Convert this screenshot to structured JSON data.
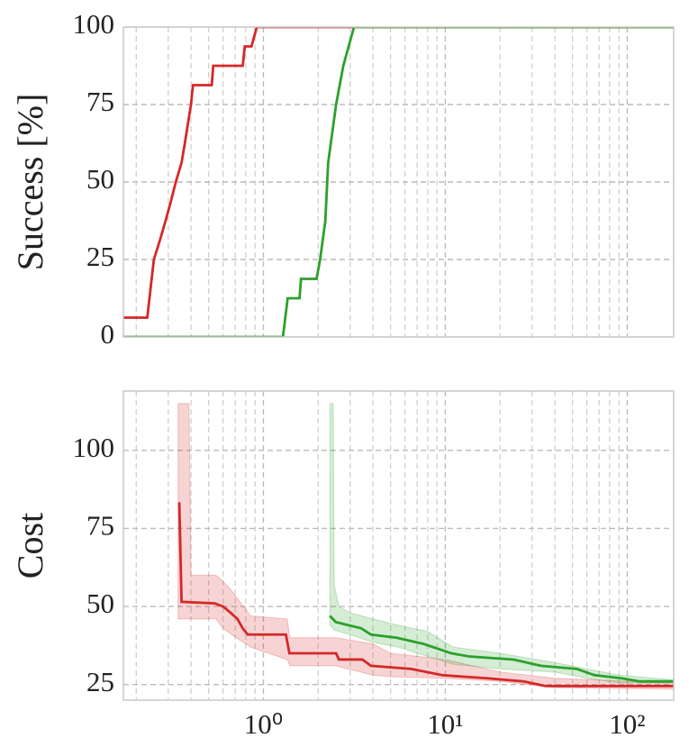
{
  "chart_data": [
    {
      "type": "line",
      "ylabel": "Success [%]",
      "xscale": "log",
      "grid": true,
      "minor_grid": true,
      "xtick_labels": false,
      "xlim": [
        0.17,
        180
      ],
      "ylim": [
        0,
        100
      ],
      "yticks": [
        0,
        25,
        50,
        75,
        100
      ],
      "xticks": [
        1,
        10,
        100
      ],
      "xminorticks": [
        0.2,
        0.3,
        0.4,
        0.5,
        0.6,
        0.7,
        0.8,
        0.9,
        2,
        3,
        4,
        5,
        6,
        7,
        8,
        9,
        20,
        30,
        40,
        50,
        60,
        70,
        80,
        90
      ],
      "series": [
        {
          "color": "#d62728",
          "x": [
            0.17,
            0.23,
            0.25,
            0.27,
            0.29,
            0.31,
            0.33,
            0.355,
            0.37,
            0.4,
            0.41,
            0.52,
            0.53,
            0.77,
            0.79,
            0.86,
            0.92,
            180
          ],
          "values": [
            6.25,
            6.25,
            25,
            31.25,
            37.5,
            43.75,
            50,
            56.25,
            62.5,
            75,
            81.25,
            81.25,
            87.5,
            87.5,
            93.75,
            93.75,
            100,
            100
          ]
        },
        {
          "color": "#2ca02c",
          "x": [
            0.17,
            1.28,
            1.36,
            1.58,
            1.61,
            1.96,
            2.05,
            2.19,
            2.27,
            2.51,
            2.75,
            2.94,
            3.15,
            180
          ],
          "values": [
            0,
            0,
            12.5,
            12.5,
            18.75,
            18.75,
            25,
            37.5,
            56.25,
            75,
            87.5,
            93.75,
            100,
            100
          ]
        }
      ]
    },
    {
      "type": "line",
      "ylabel": "Cost",
      "xscale": "log",
      "grid": true,
      "minor_grid": true,
      "xtick_labels": true,
      "xlim": [
        0.17,
        180
      ],
      "ylim": [
        20,
        119
      ],
      "yticks": [
        25,
        50,
        75,
        100
      ],
      "xticks": [
        {
          "value": 1,
          "label": "10⁰"
        },
        {
          "value": 10,
          "label": "10¹"
        },
        {
          "value": 100,
          "label": "10²"
        }
      ],
      "xminorticks": [
        0.2,
        0.3,
        0.4,
        0.5,
        0.6,
        0.7,
        0.8,
        0.9,
        2,
        3,
        4,
        5,
        6,
        7,
        8,
        9,
        20,
        30,
        40,
        50,
        60,
        70,
        80,
        90
      ],
      "series": [
        {
          "color": "#d62728",
          "x": [
            0.34,
            0.345,
            0.355,
            0.54,
            0.6,
            0.66,
            0.72,
            0.77,
            0.82,
            1.33,
            1.39,
            2.51,
            2.6,
            3.5,
            3.9,
            6.5,
            9.6,
            17,
            27,
            35.5,
            180
          ],
          "values": [
            83,
            83,
            51.5,
            51,
            50,
            48,
            46,
            43,
            41,
            41,
            35,
            35,
            33,
            33,
            31,
            30,
            28,
            27,
            26,
            24.5,
            24.5
          ],
          "band": {
            "x": [
              0.34,
              0.39,
              0.4,
              0.55,
              0.6,
              0.67,
              0.85,
              1.35,
              1.4,
              2.5,
              4,
              5,
              10,
              20,
              40,
              180
            ],
            "upper": [
              115,
              115,
              60,
              60,
              58,
              55,
              47,
              46,
              40,
              40,
              38,
              35,
              33,
              29,
              27,
              25.5
            ],
            "lower": [
              46,
              46,
              46,
              46,
              43,
              41,
              37,
              33,
              31,
              31,
              28,
              27.5,
              27,
              26,
              24,
              23.5
            ]
          }
        },
        {
          "color": "#2ca02c",
          "x": [
            2.32,
            2.5,
            3.45,
            3.9,
            5.4,
            7.6,
            10.8,
            13.5,
            23.8,
            33.5,
            52.8,
            66,
            93,
            117,
            180
          ],
          "values": [
            47,
            45,
            43,
            41,
            40,
            38,
            35,
            34,
            33,
            31,
            30,
            28,
            27,
            26,
            26
          ],
          "band": {
            "x": [
              2.32,
              2.42,
              2.45,
              2.6,
              3,
              4,
              5.5,
              8,
              11,
              20,
              40,
              60,
              90,
              180
            ],
            "upper": [
              115,
              115,
              57,
              50,
              48,
              46,
              44,
              42,
              37,
              35,
              32,
              30,
              28,
              26.5
            ],
            "lower": [
              44,
              43,
              42.5,
              42,
              41,
              38.5,
              37,
              34,
              31.5,
              30,
              29,
              27,
              25.5,
              25.5
            ]
          }
        }
      ]
    }
  ]
}
